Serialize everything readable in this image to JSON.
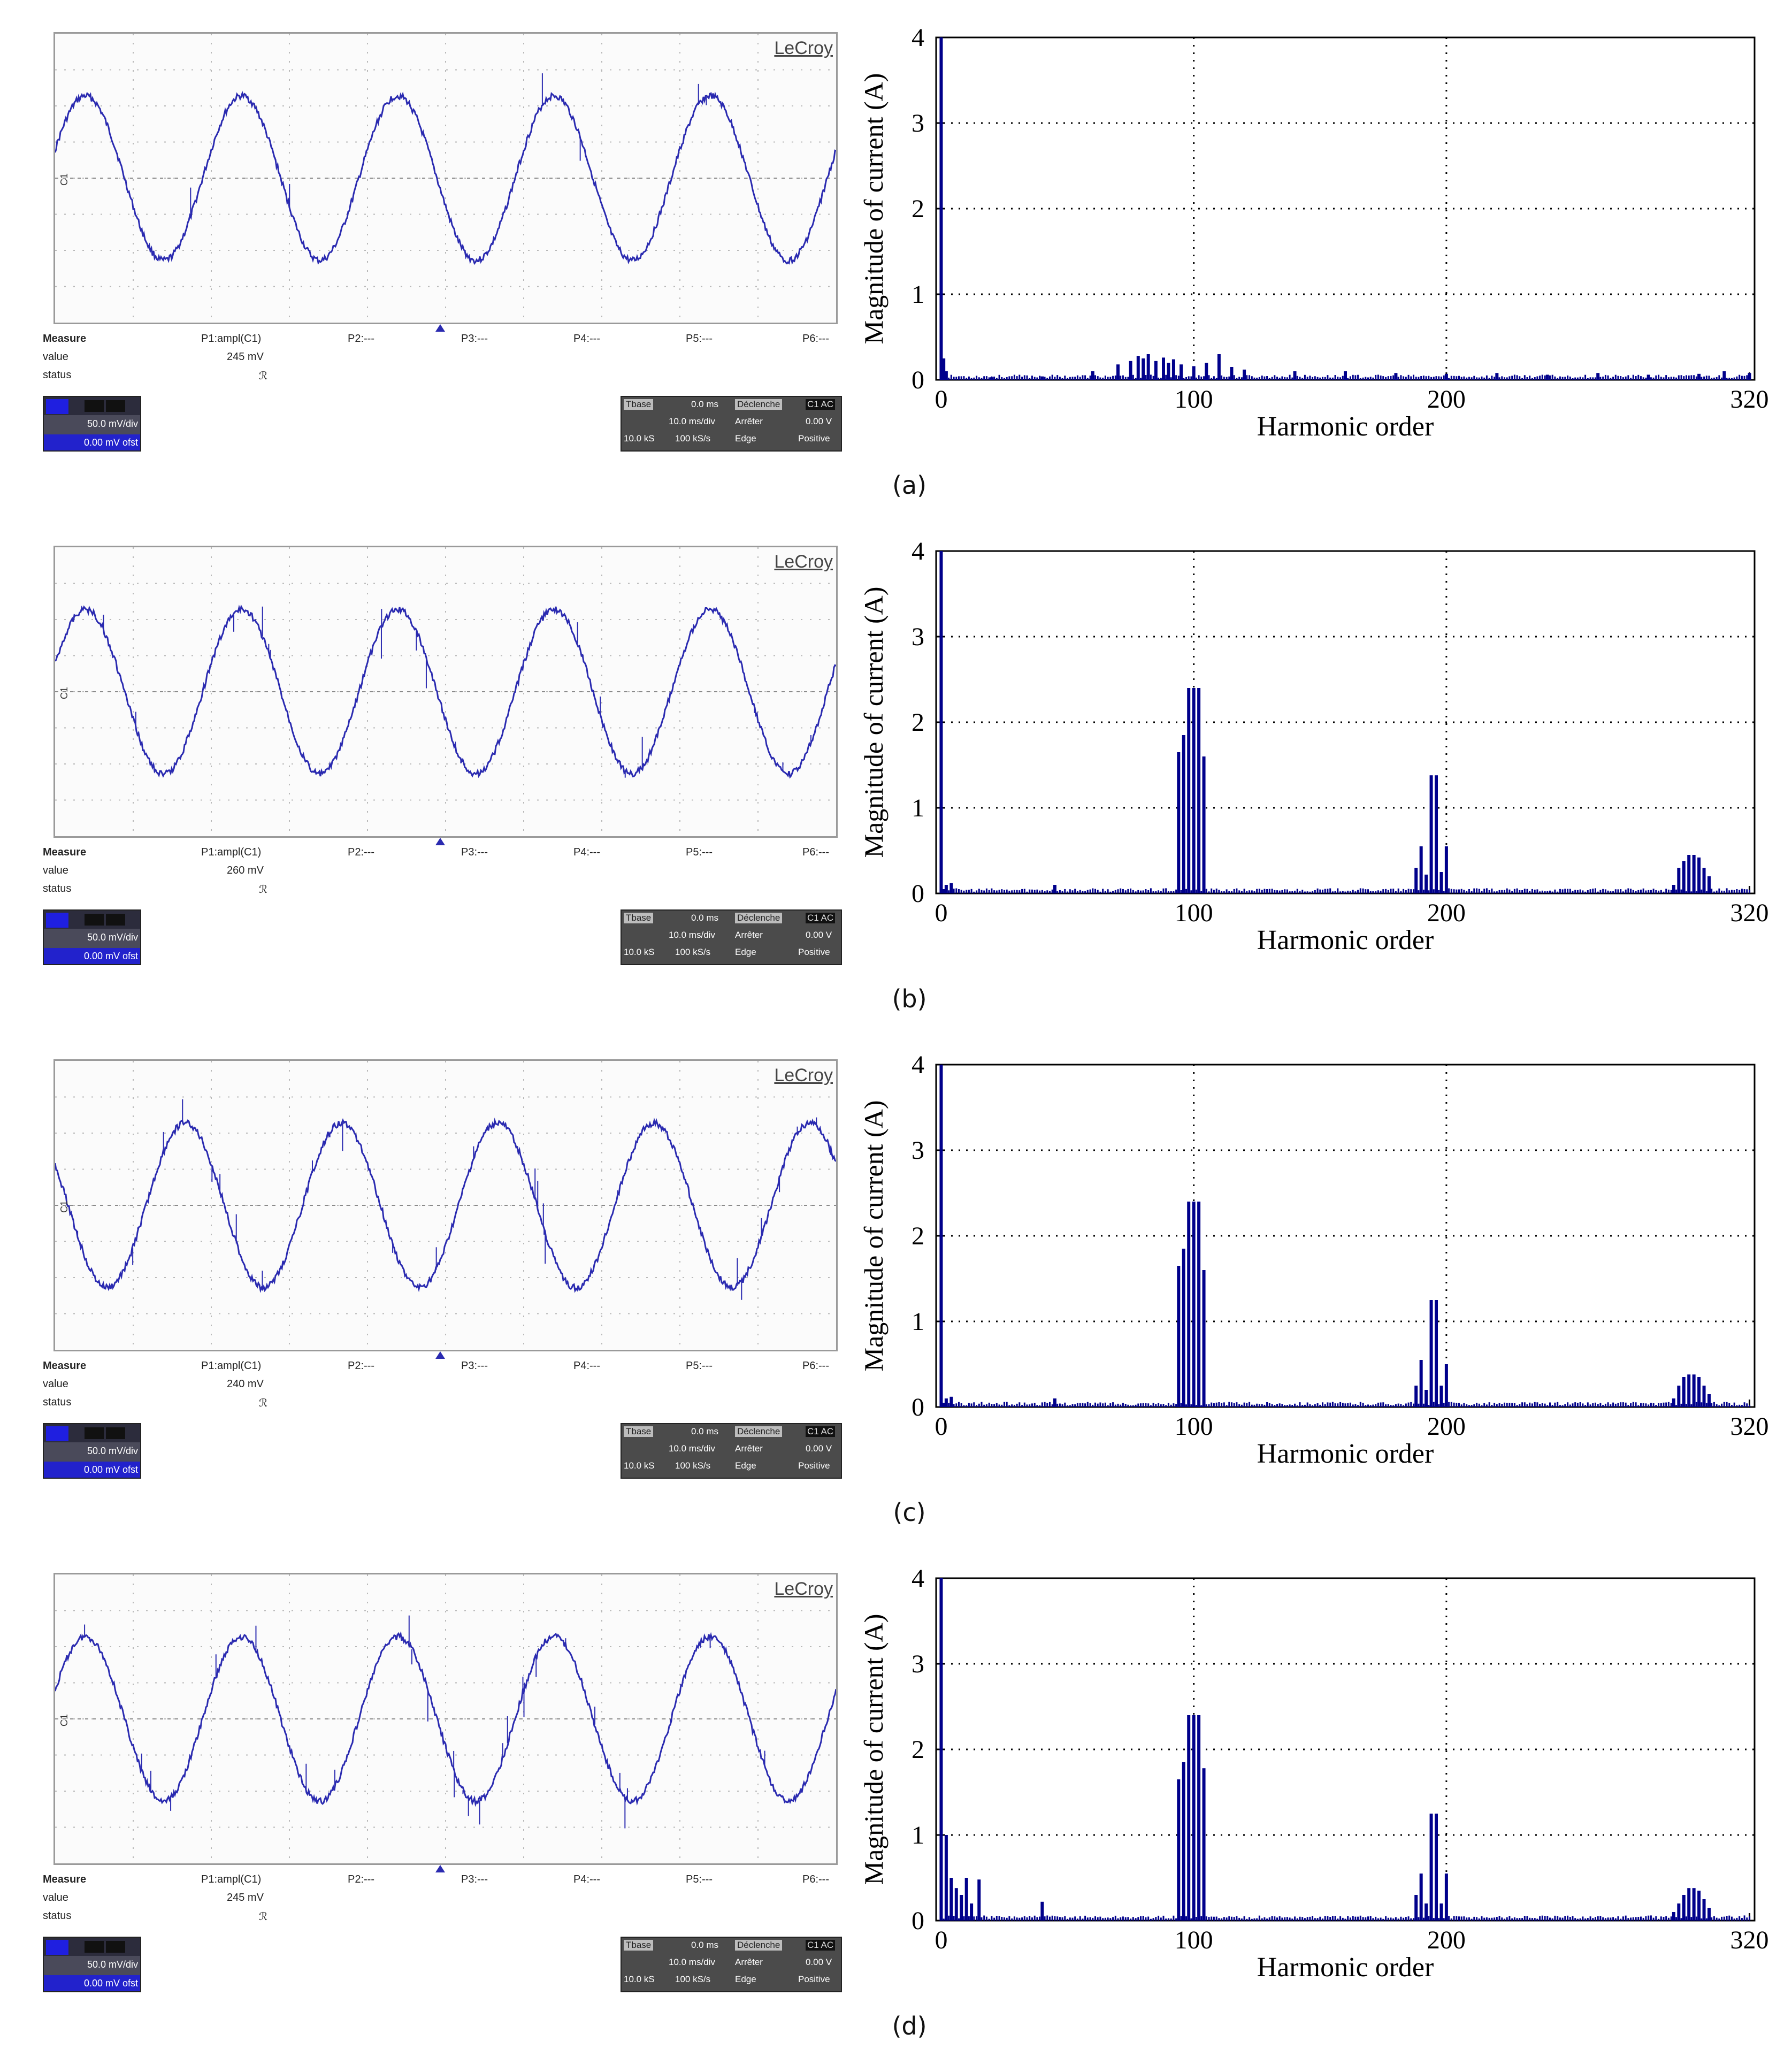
{
  "panels": [
    {
      "id": "a",
      "caption": "(a)",
      "scope": {
        "brand": "LeCroy",
        "channel_marker": "C1",
        "measure_label": "Measure",
        "value_label": "value",
        "status_label": "status",
        "p1_label": "P1:ampl(C1)",
        "p1_value": "245 mV",
        "p1_status": "ℛ",
        "params": [
          "P2:---",
          "P3:---",
          "P4:---",
          "P5:---",
          "P6:---"
        ],
        "vdiv": "50.0 mV/div",
        "offset": "0.00 mV ofst",
        "timebase": {
          "tbase_label": "Tbase",
          "tbase_value": "0.0 ms",
          "trigger_label": "Déclenche",
          "trigger_badge": "C1 AC",
          "tdiv": "10.0 ms/div",
          "arreter": "Arrêter",
          "level": "0.00 V",
          "samples": "10.0 kS",
          "rate": "100 kS/s",
          "edge": "Edge",
          "slope": "Positive"
        },
        "waveform": {
          "cycles": 5,
          "phase_deg": 20,
          "spikes": "few"
        }
      },
      "chart_data": {
        "type": "bar",
        "xlabel": "Harmonic order",
        "ylabel": "Magnitude of current (A)",
        "xlim": [
          -2,
          322
        ],
        "ylim": [
          0,
          4
        ],
        "xticks": [
          0,
          100,
          200,
          320
        ],
        "yticks": [
          0,
          1,
          2,
          3,
          4
        ],
        "grid": "dotted",
        "x": [
          0,
          1,
          2,
          20,
          40,
          60,
          70,
          75,
          78,
          80,
          82,
          85,
          88,
          90,
          92,
          95,
          100,
          105,
          110,
          115,
          120,
          140,
          160,
          180,
          200,
          220,
          240,
          260,
          280,
          300,
          310,
          320
        ],
        "values": [
          4.0,
          0.25,
          0.1,
          0.03,
          0.04,
          0.1,
          0.18,
          0.22,
          0.28,
          0.25,
          0.3,
          0.22,
          0.26,
          0.2,
          0.24,
          0.18,
          0.16,
          0.2,
          0.3,
          0.15,
          0.12,
          0.1,
          0.1,
          0.08,
          0.07,
          0.08,
          0.06,
          0.08,
          0.06,
          0.07,
          0.1,
          0.08
        ]
      }
    },
    {
      "id": "b",
      "caption": "(b)",
      "scope": {
        "brand": "LeCroy",
        "channel_marker": "C1",
        "measure_label": "Measure",
        "value_label": "value",
        "status_label": "status",
        "p1_label": "P1:ampl(C1)",
        "p1_value": "260 mV",
        "p1_status": "ℛ",
        "params": [
          "P2:---",
          "P3:---",
          "P4:---",
          "P5:---",
          "P6:---"
        ],
        "vdiv": "50.0 mV/div",
        "offset": "0.00 mV ofst",
        "timebase": {
          "tbase_label": "Tbase",
          "tbase_value": "0.0 ms",
          "trigger_label": "Déclenche",
          "trigger_badge": "C1 AC",
          "tdiv": "10.0 ms/div",
          "arreter": "Arrêter",
          "level": "0.00 V",
          "samples": "10.0 kS",
          "rate": "100 kS/s",
          "edge": "Edge",
          "slope": "Positive"
        },
        "waveform": {
          "cycles": 5,
          "phase_deg": 20,
          "spikes": "some"
        }
      },
      "chart_data": {
        "type": "bar",
        "xlabel": "Harmonic order",
        "ylabel": "Magnitude of current (A)",
        "xlim": [
          -2,
          322
        ],
        "ylim": [
          0,
          4
        ],
        "xticks": [
          0,
          100,
          200,
          320
        ],
        "yticks": [
          0,
          1,
          2,
          3,
          4
        ],
        "grid": "dotted",
        "x": [
          0,
          1,
          2,
          4,
          45,
          94,
          96,
          98,
          100,
          102,
          104,
          188,
          190,
          192,
          194,
          196,
          198,
          200,
          290,
          292,
          294,
          296,
          298,
          300,
          302,
          304
        ],
        "values": [
          4.0,
          0.05,
          0.1,
          0.12,
          0.1,
          1.65,
          1.85,
          2.4,
          2.4,
          2.4,
          1.6,
          0.3,
          0.55,
          0.22,
          1.38,
          1.38,
          0.25,
          0.55,
          0.1,
          0.3,
          0.38,
          0.45,
          0.45,
          0.42,
          0.3,
          0.2
        ]
      }
    },
    {
      "id": "c",
      "caption": "(c)",
      "scope": {
        "brand": "LeCroy",
        "channel_marker": "C1",
        "measure_label": "Measure",
        "value_label": "value",
        "status_label": "status",
        "p1_label": "P1:ampl(C1)",
        "p1_value": "240 mV",
        "p1_status": "ℛ",
        "params": [
          "P2:---",
          "P3:---",
          "P4:---",
          "P5:---",
          "P6:---"
        ],
        "vdiv": "50.0 mV/div",
        "offset": "0.00 mV ofst",
        "timebase": {
          "tbase_label": "Tbase",
          "tbase_value": "0.0 ms",
          "trigger_label": "Déclenche",
          "trigger_badge": "C1 AC",
          "tdiv": "10.0 ms/div",
          "arreter": "Arrêter",
          "level": "0.00 V",
          "samples": "10.0 kS",
          "rate": "100 kS/s",
          "edge": "Edge",
          "slope": "Positive"
        },
        "waveform": {
          "cycles": 5,
          "phase_deg": 150,
          "spikes": "many"
        }
      },
      "chart_data": {
        "type": "bar",
        "xlabel": "Harmonic order",
        "ylabel": "Magnitude of current (A)",
        "xlim": [
          -2,
          322
        ],
        "ylim": [
          0,
          4
        ],
        "xticks": [
          0,
          100,
          200,
          320
        ],
        "yticks": [
          0,
          1,
          2,
          3,
          4
        ],
        "grid": "dotted",
        "x": [
          0,
          1,
          2,
          4,
          45,
          94,
          96,
          98,
          100,
          102,
          104,
          188,
          190,
          192,
          194,
          196,
          198,
          200,
          290,
          292,
          294,
          296,
          298,
          300,
          302,
          304
        ],
        "values": [
          4.0,
          0.05,
          0.1,
          0.12,
          0.1,
          1.65,
          1.85,
          2.4,
          2.4,
          2.4,
          1.6,
          0.25,
          0.55,
          0.2,
          1.25,
          1.25,
          0.25,
          0.5,
          0.1,
          0.25,
          0.35,
          0.38,
          0.38,
          0.35,
          0.25,
          0.15
        ]
      }
    },
    {
      "id": "d",
      "caption": "(d)",
      "scope": {
        "brand": "LeCroy",
        "channel_marker": "C1",
        "measure_label": "Measure",
        "value_label": "value",
        "status_label": "status",
        "p1_label": "P1:ampl(C1)",
        "p1_value": "245 mV",
        "p1_status": "ℛ",
        "params": [
          "P2:---",
          "P3:---",
          "P4:---",
          "P5:---",
          "P6:---"
        ],
        "vdiv": "50.0 mV/div",
        "offset": "0.00 mV ofst",
        "timebase": {
          "tbase_label": "Tbase",
          "tbase_value": "0.0 ms",
          "trigger_label": "Déclenche",
          "trigger_badge": "C1 AC",
          "tdiv": "10.0 ms/div",
          "arreter": "Arrêter",
          "level": "0.00 V",
          "samples": "10.0 kS",
          "rate": "100 kS/s",
          "edge": "Edge",
          "slope": "Positive"
        },
        "waveform": {
          "cycles": 5,
          "phase_deg": 20,
          "spikes": "many"
        }
      },
      "chart_data": {
        "type": "bar",
        "xlabel": "Harmonic order",
        "ylabel": "Magnitude of current (A)",
        "xlim": [
          -2,
          322
        ],
        "ylim": [
          0,
          4
        ],
        "xticks": [
          0,
          100,
          200,
          320
        ],
        "yticks": [
          0,
          1,
          2,
          3,
          4
        ],
        "grid": "dotted",
        "x": [
          0,
          2,
          4,
          6,
          8,
          10,
          12,
          15,
          40,
          94,
          96,
          98,
          100,
          102,
          104,
          188,
          190,
          192,
          194,
          196,
          198,
          200,
          290,
          292,
          294,
          296,
          298,
          300,
          302,
          304
        ],
        "values": [
          4.0,
          1.0,
          0.5,
          0.38,
          0.3,
          0.5,
          0.2,
          0.48,
          0.22,
          1.65,
          1.85,
          2.4,
          2.4,
          2.4,
          1.78,
          0.3,
          0.55,
          0.2,
          1.25,
          1.25,
          0.2,
          0.55,
          0.1,
          0.2,
          0.3,
          0.38,
          0.38,
          0.35,
          0.25,
          0.15
        ]
      }
    }
  ],
  "colors": {
    "trace": "#2a2ab0",
    "bars": "#00008b",
    "grid": "#000000",
    "scope_grid": "#b8b8b8"
  }
}
